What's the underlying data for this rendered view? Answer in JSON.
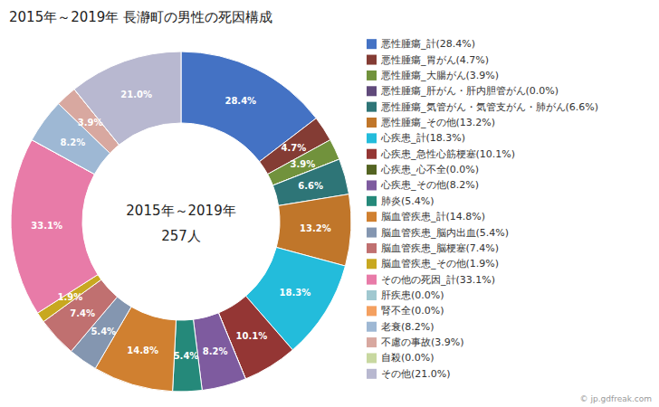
{
  "chart_data": {
    "type": "pie",
    "title": "2015年～2019年 長瀞町の男性の死因構成",
    "center_text": [
      "2015年～2019年",
      "257人"
    ],
    "annotations": [
      "© jp.gdfreak.com"
    ],
    "categories": [
      "悪性腫瘍_計(28.4%)",
      "悪性腫瘍_胃がん(4.7%)",
      "悪性腫瘍_大腸がん(3.9%)",
      "悪性腫瘍_肝がん・肝内胆管がん(0.0%)",
      "悪性腫瘍_気管がん・気管支がん・肺がん(6.6%)",
      "悪性腫瘍_その他(13.2%)",
      "心疾患_計(18.3%)",
      "心疾患_急性心筋梗塞(10.1%)",
      "心疾患_心不全(0.0%)",
      "心疾患_その他(8.2%)",
      "肺炎(5.4%)",
      "脳血管疾患_計(14.8%)",
      "脳血管疾患_脳内出血(5.4%)",
      "脳血管疾患_脳梗塞(7.4%)",
      "脳血管疾患_その他(1.9%)",
      "その他の死因_計(33.1%)",
      "肝疾患(0.0%)",
      "腎不全(0.0%)",
      "老衰(8.2%)",
      "不慮の事故(3.9%)",
      "自殺(0.0%)",
      "その他(21.0%)"
    ],
    "values": [
      28.4,
      4.7,
      3.9,
      0.001,
      6.6,
      13.2,
      18.3,
      10.1,
      0.001,
      8.2,
      5.4,
      14.8,
      5.4,
      7.4,
      1.9,
      33.1,
      0.001,
      0.001,
      8.2,
      3.9,
      0.001,
      21.0
    ],
    "value_labels": [
      "28.4%",
      "4.7%",
      "3.9%",
      null,
      "6.6%",
      "13.2%",
      "18.3%",
      "10.1%",
      null,
      "8.2%",
      "5.4%",
      "14.8%",
      "5.4%",
      "7.4%",
      "1.9%",
      "33.1%",
      null,
      null,
      "8.2%",
      "3.9%",
      null,
      "21.0%"
    ],
    "colors": [
      "#4472C4",
      "#843C34",
      "#71923C",
      "#604A7B",
      "#2E7577",
      "#C0762A",
      "#23BCDB",
      "#943634",
      "#546422",
      "#7E5B9F",
      "#25897A",
      "#D08030",
      "#8496B0",
      "#C07070",
      "#C8A820",
      "#E87BA8",
      "#A0C8D0",
      "#F4A060",
      "#9EB8D4",
      "#D8A8A0",
      "#C8D8A0",
      "#B8B8D0"
    ],
    "data_labels": true,
    "legend": "right"
  }
}
